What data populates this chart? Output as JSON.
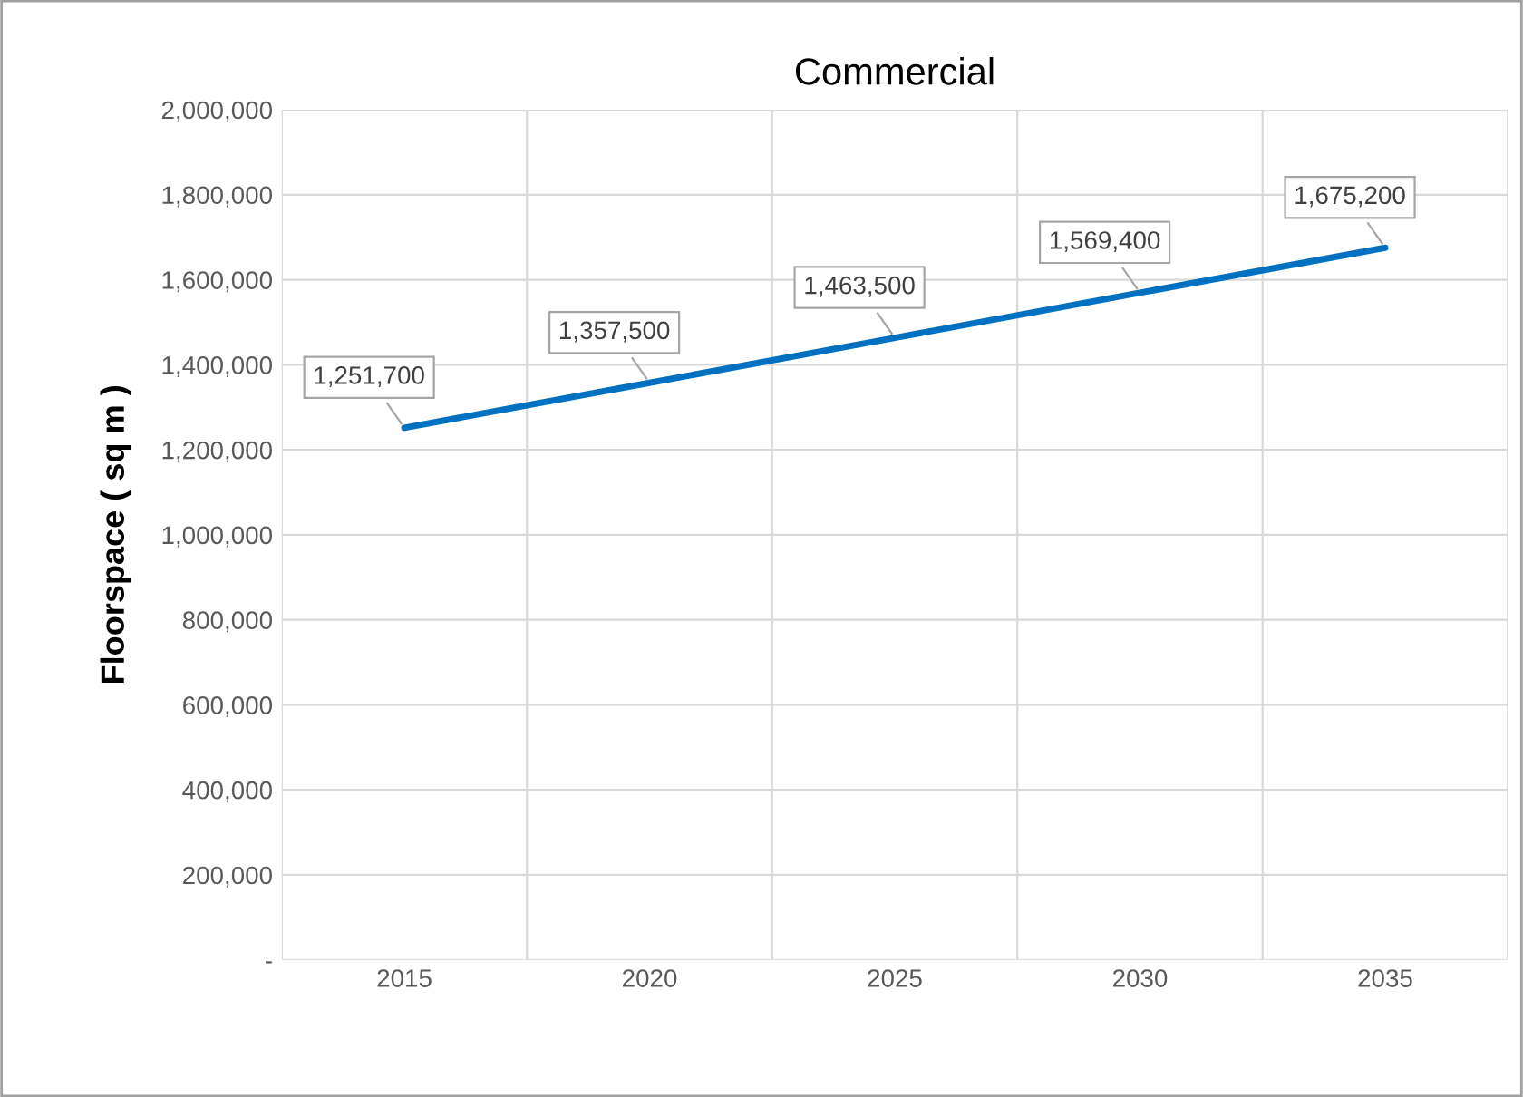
{
  "chart_data": {
    "type": "line",
    "title": "Commercial",
    "ylabel": "Floorspace ( sq m )",
    "categories": [
      "2015",
      "2020",
      "2025",
      "2030",
      "2035"
    ],
    "series": [
      {
        "color": "#0070c0",
        "values": [
          1251700,
          1357500,
          1463500,
          1569400,
          1675200
        ],
        "value_labels": [
          "1,251,700",
          "1,357,500",
          "1,463,500",
          "1,569,400",
          "1,675,200"
        ]
      }
    ],
    "ylim": [
      0,
      2000000
    ],
    "yticks": [
      {
        "value": 0,
        "label": "-"
      },
      {
        "value": 200000,
        "label": "200,000"
      },
      {
        "value": 400000,
        "label": "400,000"
      },
      {
        "value": 600000,
        "label": "600,000"
      },
      {
        "value": 800000,
        "label": "800,000"
      },
      {
        "value": 1000000,
        "label": "1,000,000"
      },
      {
        "value": 1200000,
        "label": "1,200,000"
      },
      {
        "value": 1400000,
        "label": "1,400,000"
      },
      {
        "value": 1600000,
        "label": "1,600,000"
      },
      {
        "value": 1800000,
        "label": "1,800,000"
      },
      {
        "value": 2000000,
        "label": "2,000,000"
      }
    ],
    "grid": true,
    "marker": "none",
    "line_style": "solid"
  }
}
